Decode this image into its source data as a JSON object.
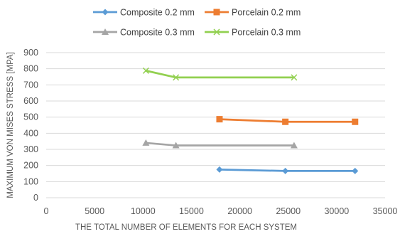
{
  "chart_data": {
    "type": "line",
    "title": "",
    "xlabel": "THE TOTAL NUMBER OF ELEMENTS FOR EACH SYSTEM",
    "ylabel": "MAXIMUM VON MISES STRESS [MPA]",
    "xlim": [
      0,
      35000
    ],
    "ylim": [
      0,
      900
    ],
    "xticks": [
      0,
      5000,
      10000,
      15000,
      20000,
      25000,
      30000,
      35000
    ],
    "yticks": [
      0,
      100,
      200,
      300,
      400,
      500,
      600,
      700,
      800,
      900
    ],
    "grid": "horizontal",
    "legend_position": "top",
    "series": [
      {
        "name": "Composite 0.2 mm",
        "color": "#5B9BD5",
        "marker": "diamond",
        "points": [
          [
            17900,
            175
          ],
          [
            24700,
            166
          ],
          [
            31900,
            166
          ]
        ]
      },
      {
        "name": "Porcelain 0.2 mm",
        "color": "#ED7D31",
        "marker": "square",
        "points": [
          [
            17900,
            487
          ],
          [
            24700,
            471
          ],
          [
            31900,
            471
          ]
        ]
      },
      {
        "name": "Composite 0.3 mm",
        "color": "#A5A5A5",
        "marker": "triangle",
        "points": [
          [
            10300,
            340
          ],
          [
            13400,
            324
          ],
          [
            25600,
            324
          ]
        ]
      },
      {
        "name": "Porcelain 0.3 mm",
        "color": "#92D050",
        "marker": "cross",
        "points": [
          [
            10300,
            788
          ],
          [
            13400,
            746
          ],
          [
            25600,
            746
          ]
        ]
      }
    ]
  }
}
